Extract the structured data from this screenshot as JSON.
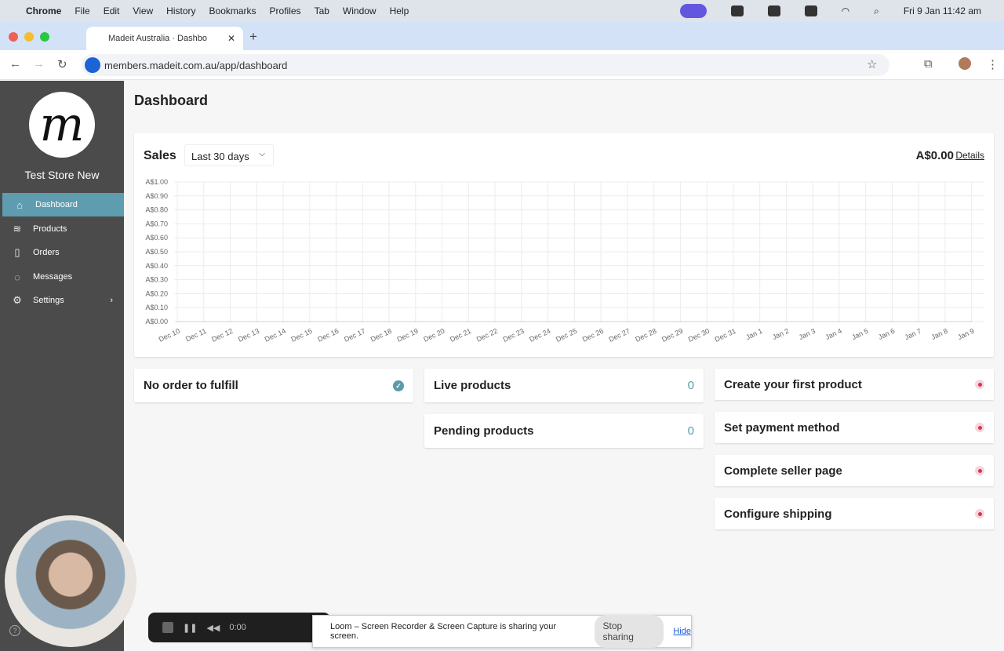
{
  "os_menu": {
    "app": "Chrome",
    "items": [
      "File",
      "Edit",
      "View",
      "History",
      "Bookmarks",
      "Profiles",
      "Tab",
      "Window",
      "Help"
    ],
    "clock": "Fri 9 Jan  11:42 am"
  },
  "browser": {
    "tab_title": "Madeit Australia · Dashbo",
    "url": "members.madeit.com.au/app/dashboard"
  },
  "sidebar": {
    "logo_letter": "M",
    "store_name": "Test Store New",
    "items": [
      {
        "label": "Dashboard",
        "icon": "home-icon",
        "active": true
      },
      {
        "label": "Products",
        "icon": "layers-icon"
      },
      {
        "label": "Orders",
        "icon": "book-icon"
      },
      {
        "label": "Messages",
        "icon": "chat-icon"
      },
      {
        "label": "Settings",
        "icon": "gear-icon"
      }
    ]
  },
  "page": {
    "title": "Dashboard"
  },
  "sales": {
    "title": "Sales",
    "range": "Last 30 days",
    "total": "A$0.00",
    "details": "Details"
  },
  "chart_data": {
    "type": "line",
    "ylim": [
      0,
      1
    ],
    "yticks": [
      "A$0.00",
      "A$0.10",
      "A$0.20",
      "A$0.30",
      "A$0.40",
      "A$0.50",
      "A$0.60",
      "A$0.70",
      "A$0.80",
      "A$0.90",
      "A$1.00"
    ],
    "categories": [
      "Dec 10",
      "Dec 11",
      "Dec 12",
      "Dec 13",
      "Dec 14",
      "Dec 15",
      "Dec 16",
      "Dec 17",
      "Dec 18",
      "Dec 19",
      "Dec 20",
      "Dec 21",
      "Dec 22",
      "Dec 23",
      "Dec 24",
      "Dec 25",
      "Dec 26",
      "Dec 27",
      "Dec 28",
      "Dec 29",
      "Dec 30",
      "Dec 31",
      "Jan 1",
      "Jan 2",
      "Jan 3",
      "Jan 4",
      "Jan 5",
      "Jan 6",
      "Jan 7",
      "Jan 8",
      "Jan 9"
    ],
    "values": [
      0,
      0,
      0,
      0,
      0,
      0,
      0,
      0,
      0,
      0,
      0,
      0,
      0,
      0,
      0,
      0,
      0,
      0,
      0,
      0,
      0,
      0,
      0,
      0,
      0,
      0,
      0,
      0,
      0,
      0,
      0
    ],
    "grid": true
  },
  "orders": {
    "label": "No order to fulfill"
  },
  "products": [
    {
      "label": "Live products",
      "count": "0"
    },
    {
      "label": "Pending products",
      "count": "0"
    }
  ],
  "todo": [
    "Create your first product",
    "Set payment method",
    "Complete seller page",
    "Configure shipping"
  ],
  "colors": {
    "accent": "#5b9aaa",
    "sidebar": "#4b4b4b",
    "todo_dot": "#d9335b"
  },
  "loom": {
    "timer": "0:00",
    "message": "Loom – Screen Recorder & Screen Capture is sharing your screen.",
    "stop": "Stop sharing",
    "hide": "Hide"
  }
}
